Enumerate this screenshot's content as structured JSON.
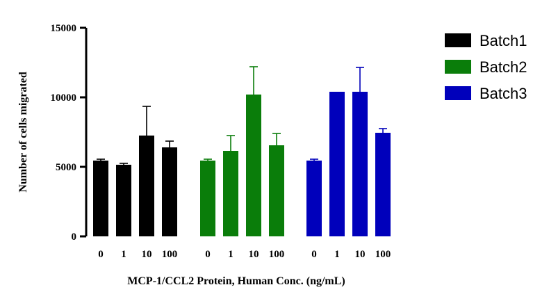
{
  "chart_data": {
    "type": "bar",
    "title": "",
    "xlabel": "MCP-1/CCL2 Protein, Human Conc. (ng/mL)",
    "ylabel": "Number of cells migrated",
    "ylim": [
      0,
      15000
    ],
    "yticks": [
      0,
      5000,
      10000,
      15000
    ],
    "ytick_labels": [
      "0",
      "5000",
      "10000",
      "15000"
    ],
    "categories": [
      "0",
      "1",
      "10",
      "100"
    ],
    "series": [
      {
        "name": "Batch1",
        "color": "#000000",
        "values": [
          5450,
          5150,
          7250,
          6400
        ],
        "errors": [
          100,
          100,
          2100,
          450
        ]
      },
      {
        "name": "Batch2",
        "color": "#0a7d0a",
        "values": [
          5450,
          6150,
          10200,
          6550
        ],
        "errors": [
          100,
          1100,
          2000,
          850
        ]
      },
      {
        "name": "Batch3",
        "color": "#0000bb",
        "values": [
          5450,
          10400,
          10400,
          7450
        ],
        "errors": [
          100,
          0,
          1750,
          300
        ]
      }
    ],
    "legend_position": "top-right",
    "grid": false
  }
}
